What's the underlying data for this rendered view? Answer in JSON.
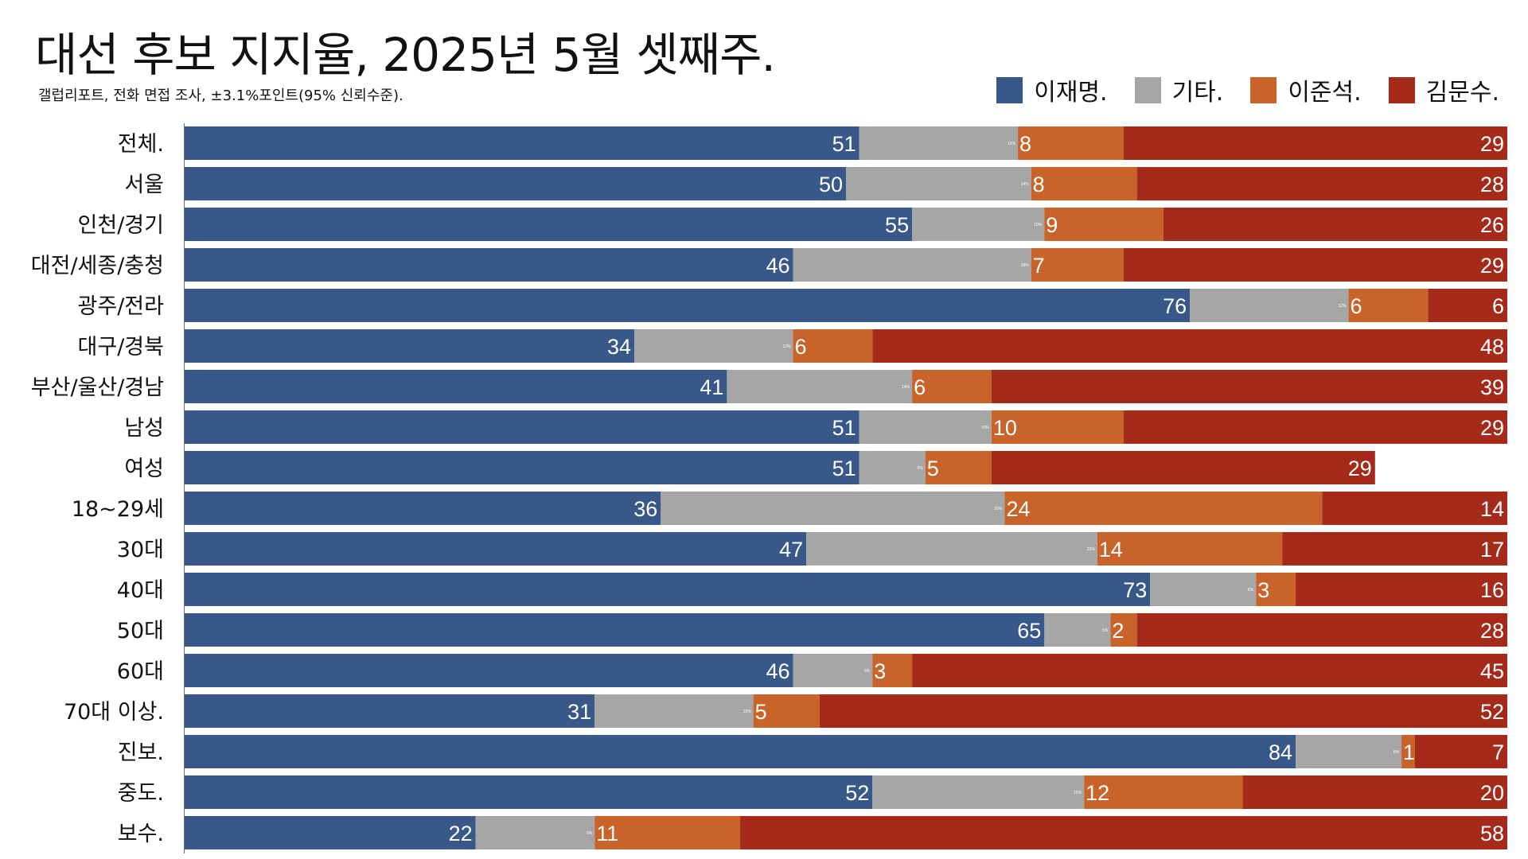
{
  "chart_data": {
    "type": "bar",
    "orientation": "horizontal",
    "stacked": true,
    "title": "대선 후보 지지율, 2025년 5월 셋째주.",
    "subtitle": "갤럽리포트, 전화 면접 조사, ±3.1%포인트(95% 신뢰수준).",
    "legend_position": "top-right",
    "categories": [
      "전체.",
      "서울",
      "인천/경기",
      "대전/세종/충청",
      "광주/전라",
      "대구/경북",
      "부산/울산/경남",
      "남성",
      "여성",
      "18~29세",
      "30대",
      "40대",
      "50대",
      "60대",
      "70대 이상.",
      "진보.",
      "중도.",
      "보수."
    ],
    "series": [
      {
        "name": "이재명.",
        "color": "#39588a",
        "values": [
          51,
          50,
          55,
          46,
          76,
          34,
          41,
          51,
          51,
          36,
          47,
          73,
          65,
          46,
          31,
          84,
          52,
          22
        ]
      },
      {
        "name": "기타.",
        "color": "#a6a6a6",
        "values": [
          12,
          14,
          10,
          18,
          12,
          12,
          14,
          10,
          5,
          26,
          22,
          8,
          5,
          6,
          12,
          8,
          16,
          9
        ]
      },
      {
        "name": "이준석.",
        "color": "#c8642a",
        "values": [
          8,
          8,
          9,
          7,
          6,
          6,
          6,
          10,
          5,
          24,
          14,
          3,
          2,
          3,
          5,
          1,
          12,
          11
        ]
      },
      {
        "name": "김문수.",
        "color": "#a52a1a",
        "values": [
          29,
          28,
          26,
          29,
          6,
          48,
          39,
          29,
          29,
          14,
          17,
          16,
          28,
          45,
          52,
          7,
          20,
          58
        ]
      }
    ],
    "xlim": [
      0,
      100
    ],
    "grid": false
  }
}
